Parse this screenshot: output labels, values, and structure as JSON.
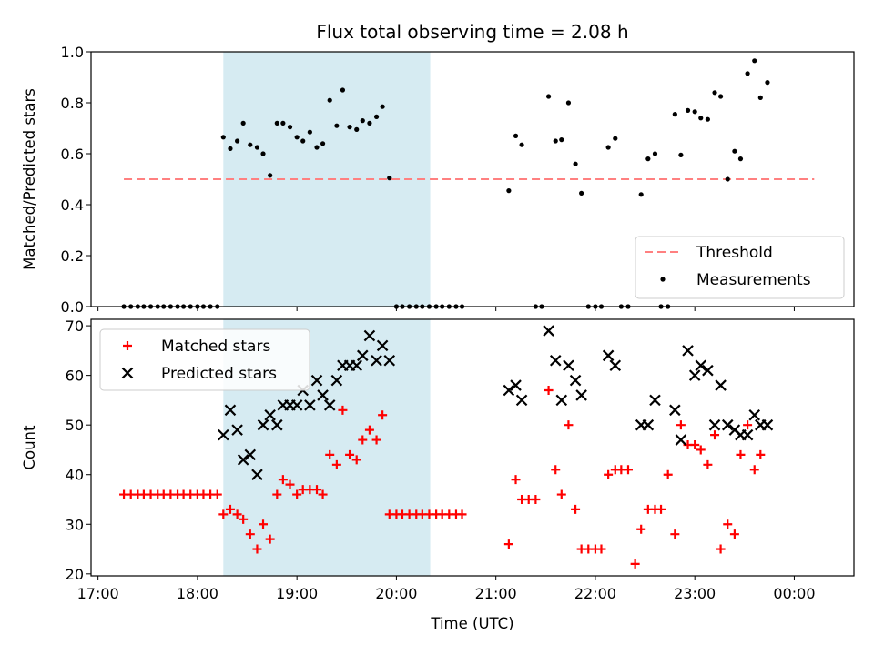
{
  "chart_data": {
    "title": "Flux total observing time = 2.08 h",
    "x_tick_labels": [
      "17:00",
      "18:00",
      "19:00",
      "20:00",
      "21:00",
      "22:00",
      "23:00",
      "00:00"
    ],
    "xlabel": "Time (UTC)",
    "xlim_hours": [
      16.93,
      24.6
    ],
    "shaded_interval_hours": [
      18.26,
      20.34
    ],
    "shade_color": "#add8e6",
    "panels": [
      {
        "type": "scatter",
        "ylabel": "Matched/Predicted stars",
        "ylim": [
          0,
          1.0
        ],
        "y_tick_labels": [
          "0.0",
          "0.2",
          "0.4",
          "0.6",
          "0.8",
          "1.0"
        ],
        "threshold": {
          "label": "Threshold",
          "y": 0.5,
          "x_range": [
            17.26,
            24.2
          ],
          "color": "#ff8080",
          "style": "dashed"
        },
        "series": [
          {
            "name": "Measurements",
            "color": "#000000",
            "marker": "dot",
            "points": [
              [
                17.26,
                0.0
              ],
              [
                17.33,
                0.0
              ],
              [
                17.4,
                0.0
              ],
              [
                17.46,
                0.0
              ],
              [
                17.53,
                0.0
              ],
              [
                17.6,
                0.0
              ],
              [
                17.66,
                0.0
              ],
              [
                17.73,
                0.0
              ],
              [
                17.8,
                0.0
              ],
              [
                17.86,
                0.0
              ],
              [
                17.93,
                0.0
              ],
              [
                18.0,
                0.0
              ],
              [
                18.06,
                0.0
              ],
              [
                18.13,
                0.0
              ],
              [
                18.2,
                0.0
              ],
              [
                18.26,
                0.665
              ],
              [
                18.33,
                0.62
              ],
              [
                18.4,
                0.65
              ],
              [
                18.46,
                0.72
              ],
              [
                18.53,
                0.635
              ],
              [
                18.6,
                0.625
              ],
              [
                18.66,
                0.6
              ],
              [
                18.73,
                0.515
              ],
              [
                18.8,
                0.72
              ],
              [
                18.86,
                0.72
              ],
              [
                18.93,
                0.705
              ],
              [
                19.0,
                0.665
              ],
              [
                19.06,
                0.65
              ],
              [
                19.13,
                0.685
              ],
              [
                19.2,
                0.625
              ],
              [
                19.26,
                0.64
              ],
              [
                19.33,
                0.81
              ],
              [
                19.4,
                0.71
              ],
              [
                19.46,
                0.85
              ],
              [
                19.53,
                0.705
              ],
              [
                19.6,
                0.695
              ],
              [
                19.66,
                0.73
              ],
              [
                19.73,
                0.72
              ],
              [
                19.8,
                0.745
              ],
              [
                19.86,
                0.785
              ],
              [
                19.93,
                0.505
              ],
              [
                20.0,
                0.0
              ],
              [
                20.06,
                0.0
              ],
              [
                20.13,
                0.0
              ],
              [
                20.2,
                0.0
              ],
              [
                20.26,
                0.0
              ],
              [
                20.33,
                0.0
              ],
              [
                20.4,
                0.0
              ],
              [
                20.46,
                0.0
              ],
              [
                20.53,
                0.0
              ],
              [
                20.6,
                0.0
              ],
              [
                20.66,
                0.0
              ],
              [
                21.13,
                0.455
              ],
              [
                21.2,
                0.67
              ],
              [
                21.26,
                0.635
              ],
              [
                21.4,
                0.0
              ],
              [
                21.46,
                0.0
              ],
              [
                21.53,
                0.825
              ],
              [
                21.6,
                0.65
              ],
              [
                21.66,
                0.655
              ],
              [
                21.73,
                0.8
              ],
              [
                21.8,
                0.56
              ],
              [
                21.86,
                0.445
              ],
              [
                21.93,
                0.0
              ],
              [
                22.0,
                0.0
              ],
              [
                22.06,
                0.0
              ],
              [
                22.13,
                0.625
              ],
              [
                22.2,
                0.66
              ],
              [
                22.26,
                0.0
              ],
              [
                22.33,
                0.0
              ],
              [
                22.46,
                0.44
              ],
              [
                22.53,
                0.58
              ],
              [
                22.6,
                0.6
              ],
              [
                22.66,
                0.0
              ],
              [
                22.73,
                0.0
              ],
              [
                22.8,
                0.755
              ],
              [
                22.86,
                0.595
              ],
              [
                22.93,
                0.77
              ],
              [
                23.0,
                0.765
              ],
              [
                23.06,
                0.74
              ],
              [
                23.13,
                0.735
              ],
              [
                23.2,
                0.84
              ],
              [
                23.26,
                0.825
              ],
              [
                23.33,
                0.5
              ],
              [
                23.4,
                0.61
              ],
              [
                23.46,
                0.58
              ],
              [
                23.53,
                0.915
              ],
              [
                23.6,
                0.965
              ],
              [
                23.66,
                0.82
              ],
              [
                23.73,
                0.88
              ]
            ]
          }
        ],
        "legend": {
          "placement": "lower right",
          "entries": [
            "Threshold",
            "Measurements"
          ]
        }
      },
      {
        "type": "scatter",
        "ylabel": "Count",
        "ylim": [
          19.6,
          71.3
        ],
        "y_tick_labels": [
          "20",
          "30",
          "40",
          "50",
          "60",
          "70"
        ],
        "series": [
          {
            "name": "Matched stars",
            "color": "#ff0000",
            "marker": "plus",
            "points": [
              [
                17.26,
                36
              ],
              [
                17.33,
                36
              ],
              [
                17.4,
                36
              ],
              [
                17.46,
                36
              ],
              [
                17.53,
                36
              ],
              [
                17.6,
                36
              ],
              [
                17.66,
                36
              ],
              [
                17.73,
                36
              ],
              [
                17.8,
                36
              ],
              [
                17.86,
                36
              ],
              [
                17.93,
                36
              ],
              [
                18.0,
                36
              ],
              [
                18.06,
                36
              ],
              [
                18.13,
                36
              ],
              [
                18.2,
                36
              ],
              [
                18.26,
                32
              ],
              [
                18.33,
                33
              ],
              [
                18.4,
                32
              ],
              [
                18.46,
                31
              ],
              [
                18.53,
                28
              ],
              [
                18.6,
                25
              ],
              [
                18.66,
                30
              ],
              [
                18.73,
                27
              ],
              [
                18.8,
                36
              ],
              [
                18.86,
                39
              ],
              [
                18.93,
                38
              ],
              [
                19.0,
                36
              ],
              [
                19.06,
                37
              ],
              [
                19.13,
                37
              ],
              [
                19.2,
                37
              ],
              [
                19.26,
                36
              ],
              [
                19.33,
                44
              ],
              [
                19.4,
                42
              ],
              [
                19.46,
                53
              ],
              [
                19.53,
                44
              ],
              [
                19.6,
                43
              ],
              [
                19.66,
                47
              ],
              [
                19.73,
                49
              ],
              [
                19.8,
                47
              ],
              [
                19.86,
                52
              ],
              [
                19.93,
                32
              ],
              [
                20.0,
                32
              ],
              [
                20.06,
                32
              ],
              [
                20.13,
                32
              ],
              [
                20.2,
                32
              ],
              [
                20.26,
                32
              ],
              [
                20.33,
                32
              ],
              [
                20.4,
                32
              ],
              [
                20.46,
                32
              ],
              [
                20.53,
                32
              ],
              [
                20.6,
                32
              ],
              [
                20.66,
                32
              ],
              [
                21.13,
                26
              ],
              [
                21.2,
                39
              ],
              [
                21.26,
                35
              ],
              [
                21.33,
                35
              ],
              [
                21.4,
                35
              ],
              [
                21.53,
                57
              ],
              [
                21.6,
                41
              ],
              [
                21.66,
                36
              ],
              [
                21.73,
                50
              ],
              [
                21.8,
                33
              ],
              [
                21.86,
                25
              ],
              [
                21.93,
                25
              ],
              [
                22.0,
                25
              ],
              [
                22.06,
                25
              ],
              [
                22.13,
                40
              ],
              [
                22.2,
                41
              ],
              [
                22.26,
                41
              ],
              [
                22.33,
                41
              ],
              [
                22.4,
                22
              ],
              [
                22.46,
                29
              ],
              [
                22.53,
                33
              ],
              [
                22.6,
                33
              ],
              [
                22.66,
                33
              ],
              [
                22.73,
                40
              ],
              [
                22.8,
                28
              ],
              [
                22.86,
                50
              ],
              [
                22.93,
                46
              ],
              [
                23.0,
                46
              ],
              [
                23.06,
                45
              ],
              [
                23.13,
                42
              ],
              [
                23.2,
                48
              ],
              [
                23.26,
                25
              ],
              [
                23.33,
                30
              ],
              [
                23.4,
                28
              ],
              [
                23.46,
                44
              ],
              [
                23.53,
                50
              ],
              [
                23.6,
                41
              ],
              [
                23.66,
                44
              ]
            ]
          },
          {
            "name": "Predicted stars",
            "color": "#000000",
            "marker": "x",
            "points": [
              [
                18.26,
                48
              ],
              [
                18.33,
                53
              ],
              [
                18.4,
                49
              ],
              [
                18.46,
                43
              ],
              [
                18.53,
                44
              ],
              [
                18.6,
                40
              ],
              [
                18.66,
                50
              ],
              [
                18.73,
                52
              ],
              [
                18.8,
                50
              ],
              [
                18.86,
                54
              ],
              [
                18.93,
                54
              ],
              [
                19.0,
                54
              ],
              [
                19.06,
                57
              ],
              [
                19.13,
                54
              ],
              [
                19.2,
                59
              ],
              [
                19.26,
                56
              ],
              [
                19.33,
                54
              ],
              [
                19.4,
                59
              ],
              [
                19.46,
                62
              ],
              [
                19.53,
                62
              ],
              [
                19.6,
                62
              ],
              [
                19.66,
                64
              ],
              [
                19.73,
                68
              ],
              [
                19.8,
                63
              ],
              [
                19.86,
                66
              ],
              [
                19.93,
                63
              ],
              [
                21.13,
                57
              ],
              [
                21.2,
                58
              ],
              [
                21.26,
                55
              ],
              [
                21.53,
                69
              ],
              [
                21.6,
                63
              ],
              [
                21.66,
                55
              ],
              [
                21.73,
                62
              ],
              [
                21.8,
                59
              ],
              [
                21.86,
                56
              ],
              [
                22.13,
                64
              ],
              [
                22.2,
                62
              ],
              [
                22.46,
                50
              ],
              [
                22.53,
                50
              ],
              [
                22.6,
                55
              ],
              [
                22.8,
                53
              ],
              [
                22.86,
                47
              ],
              [
                22.93,
                65
              ],
              [
                23.0,
                60
              ],
              [
                23.06,
                62
              ],
              [
                23.13,
                61
              ],
              [
                23.2,
                50
              ],
              [
                23.26,
                58
              ],
              [
                23.33,
                50
              ],
              [
                23.4,
                49
              ],
              [
                23.46,
                48
              ],
              [
                23.53,
                48
              ],
              [
                23.6,
                52
              ],
              [
                23.66,
                50
              ],
              [
                23.73,
                50
              ]
            ]
          }
        ],
        "legend": {
          "placement": "upper left",
          "entries": [
            "Matched stars",
            "Predicted stars"
          ]
        }
      }
    ]
  }
}
